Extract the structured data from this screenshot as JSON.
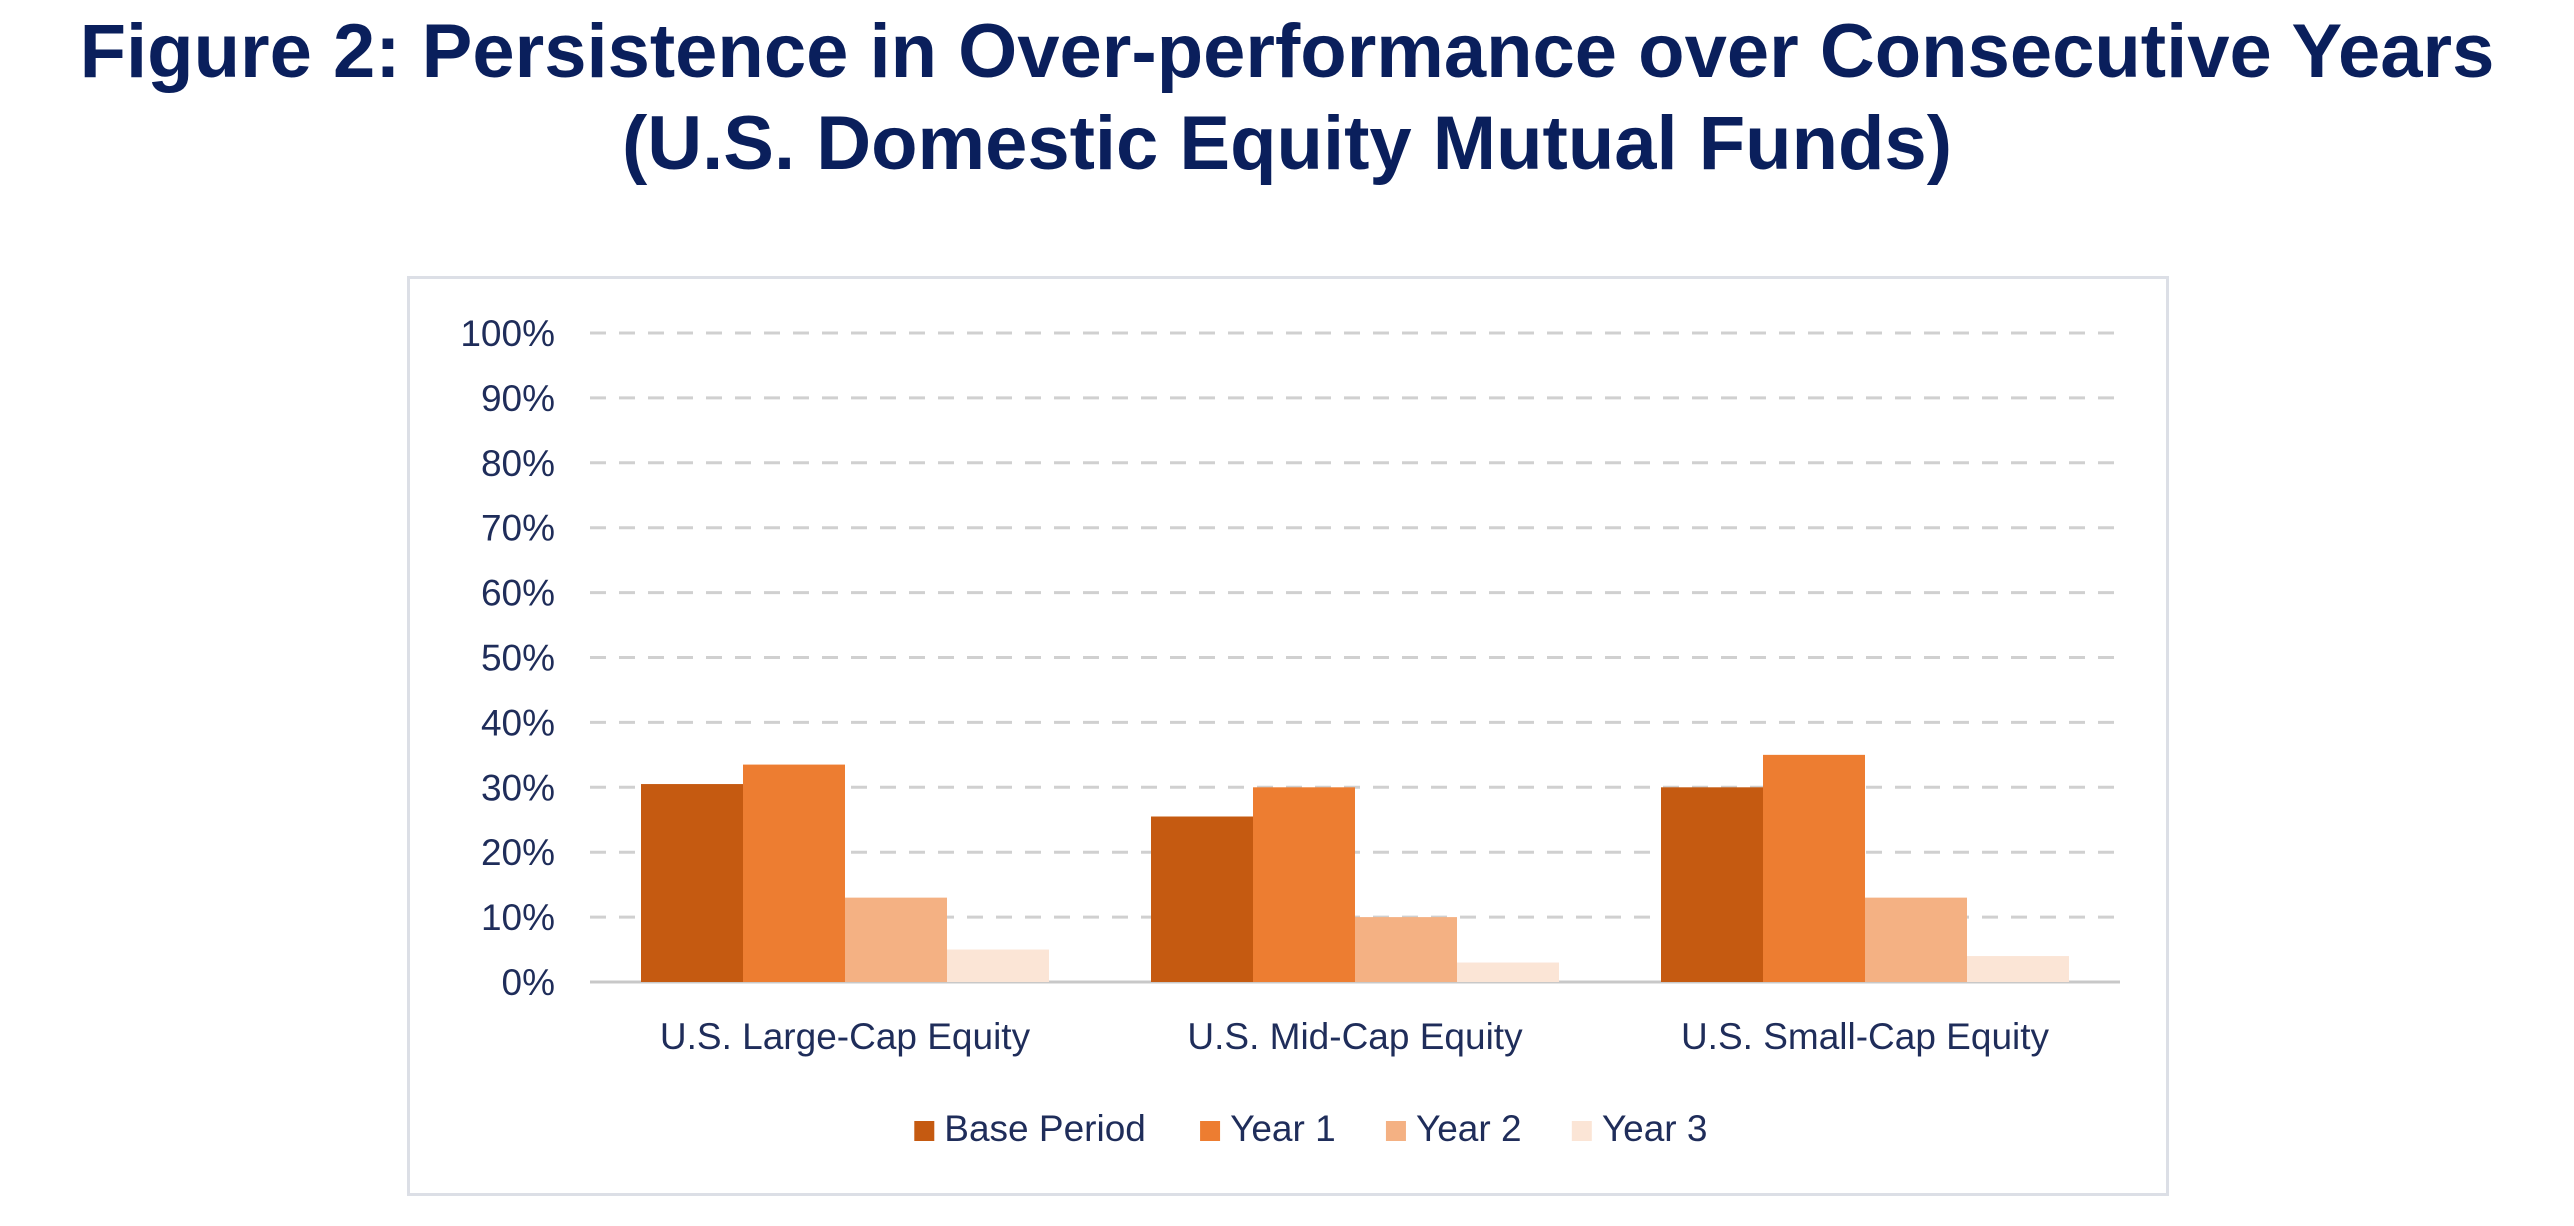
{
  "figure": {
    "title_line1": "Figure 2: Persistence in Over-performance over Consecutive Years",
    "title_line2": "(U.S. Domestic Equity Mutual Funds)"
  },
  "chart_data": {
    "type": "bar",
    "title": "Figure 2: Persistence in Over-performance over Consecutive Years (U.S. Domestic Equity Mutual Funds)",
    "xlabel": "",
    "ylabel": "",
    "ylim": [
      0,
      100
    ],
    "y_ticks": [
      0,
      10,
      20,
      30,
      40,
      50,
      60,
      70,
      80,
      90,
      100
    ],
    "y_tick_format": "percent",
    "y_tick_labels": [
      "0%",
      "10%",
      "20%",
      "30%",
      "40%",
      "50%",
      "60%",
      "70%",
      "80%",
      "90%",
      "100%"
    ],
    "grid": "horizontal dashed",
    "legend_position": "bottom",
    "categories": [
      "U.S. Large-Cap Equity",
      "U.S. Mid-Cap Equity",
      "U.S. Small-Cap Equity"
    ],
    "series": [
      {
        "name": "Base Period",
        "color": "#c55a11",
        "values": [
          30.5,
          25.5,
          30
        ]
      },
      {
        "name": "Year 1",
        "color": "#ed7d31",
        "values": [
          33.5,
          30,
          35
        ]
      },
      {
        "name": "Year 2",
        "color": "#f4b183",
        "values": [
          13,
          10,
          13
        ]
      },
      {
        "name": "Year 3",
        "color": "#fbe5d6",
        "values": [
          5,
          3,
          4
        ]
      }
    ]
  },
  "colors": {
    "title_text": "#0a1f5c",
    "axis_text": "#1f2d5a",
    "gridline": "#d0d0d0",
    "axis_line": "#c8c8c8"
  }
}
